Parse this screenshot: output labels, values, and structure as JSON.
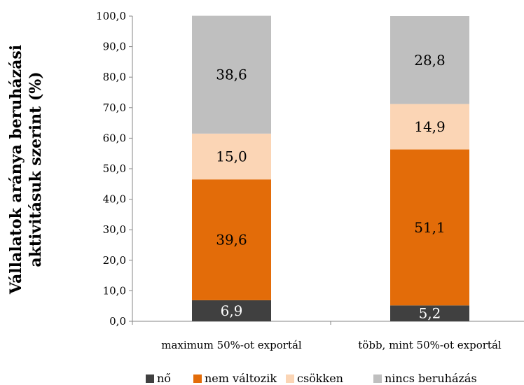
{
  "chart_data": {
    "type": "bar",
    "stacked": true,
    "ylabel": [
      "Vállalatok aránya beruházási",
      "aktivitásuk szerint (%)"
    ],
    "xlabel": "",
    "ylim": [
      0,
      100
    ],
    "yticks": [
      "0,0",
      "10,0",
      "20,0",
      "30,0",
      "40,0",
      "50,0",
      "60,0",
      "70,0",
      "80,0",
      "90,0",
      "100,0"
    ],
    "categories": [
      "maximum 50%-ot exportál",
      "több, mint 50%-ot exportál"
    ],
    "series": [
      {
        "name": "nő",
        "color": "#404040",
        "values": [
          6.9,
          5.2
        ],
        "labels": [
          "6,9",
          "5,2"
        ]
      },
      {
        "name": "nem változik",
        "color": "#E36C09",
        "values": [
          39.6,
          51.1
        ],
        "labels": [
          "39,6",
          "51,1"
        ]
      },
      {
        "name": "csökken",
        "color": "#FBD5B5",
        "values": [
          15.0,
          14.9
        ],
        "labels": [
          "15,0",
          "14,9"
        ]
      },
      {
        "name": "nincs beruházás",
        "color": "#BFBFBF",
        "values": [
          38.6,
          28.8
        ],
        "labels": [
          "38,6",
          "28,8"
        ]
      }
    ],
    "legend_position": "bottom",
    "grid": false
  }
}
